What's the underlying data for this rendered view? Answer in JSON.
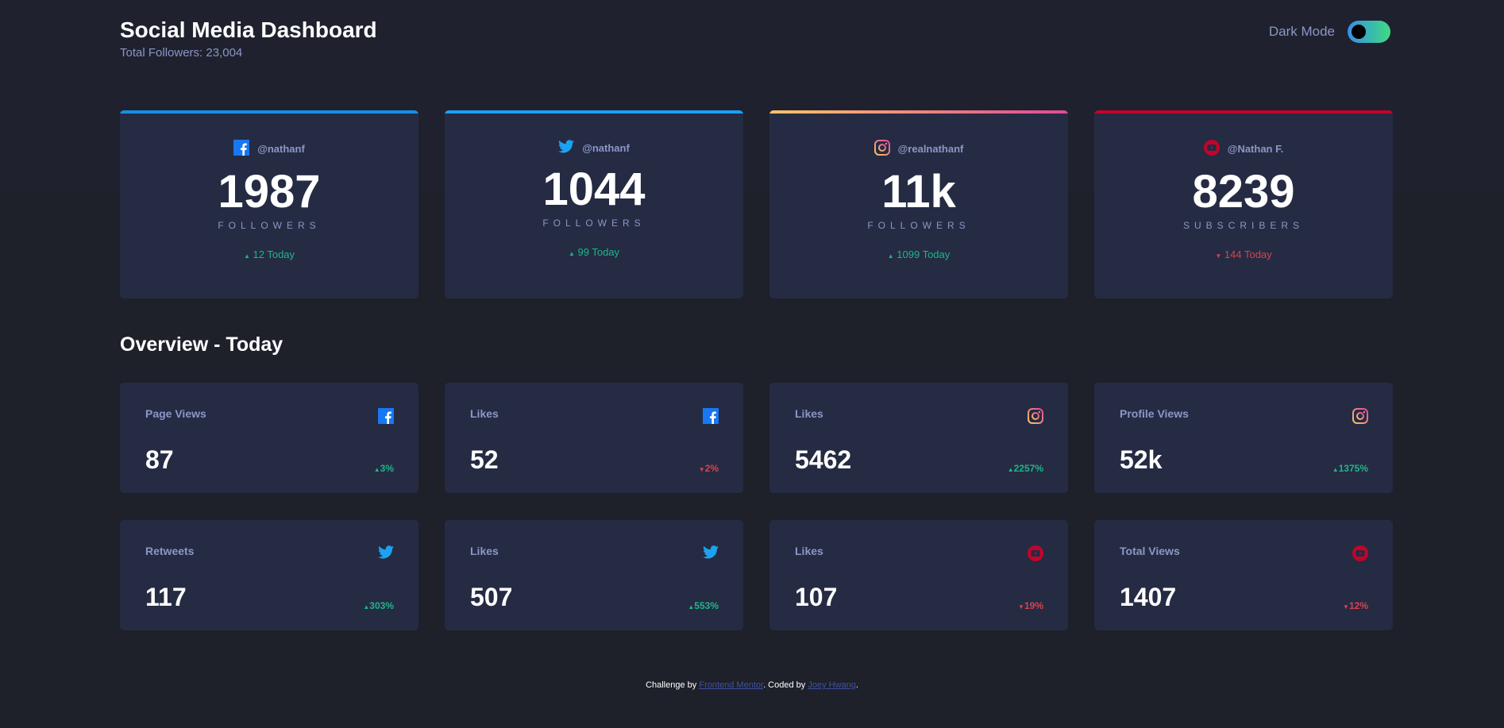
{
  "header": {
    "title": "Social Media Dashboard",
    "total_followers": "Total Followers: 23,004",
    "mode_label": "Dark Mode",
    "dark_mode_on": true
  },
  "colors": {
    "facebook": "#1877f2",
    "twitter": "#1da1f2",
    "instagram": [
      "#fdc468",
      "#df4996"
    ],
    "youtube": "#c4032a",
    "up": "#1eb589",
    "down": "#dc414c"
  },
  "followers": [
    {
      "platform": "facebook",
      "icon": "facebook-icon",
      "handle": "@nathanf",
      "count": "1987",
      "label": "FOLLOWERS",
      "change": "12 Today",
      "trend": "up"
    },
    {
      "platform": "twitter",
      "icon": "twitter-icon",
      "handle": "@nathanf",
      "count": "1044",
      "label": "FOLLOWERS",
      "change": "99 Today",
      "trend": "up"
    },
    {
      "platform": "instagram",
      "icon": "instagram-icon",
      "handle": "@realnathanf",
      "count": "11k",
      "label": "FOLLOWERS",
      "change": "1099 Today",
      "trend": "up"
    },
    {
      "platform": "youtube",
      "icon": "youtube-icon",
      "handle": "@Nathan F.",
      "count": "8239",
      "label": "SUBSCRIBERS",
      "change": "144 Today",
      "trend": "down"
    }
  ],
  "overview": {
    "title": "Overview - Today",
    "items": [
      {
        "label": "Page Views",
        "platform": "facebook",
        "value": "87",
        "change": "3%",
        "trend": "up"
      },
      {
        "label": "Likes",
        "platform": "facebook",
        "value": "52",
        "change": "2%",
        "trend": "down"
      },
      {
        "label": "Likes",
        "platform": "instagram",
        "value": "5462",
        "change": "2257%",
        "trend": "up"
      },
      {
        "label": "Profile Views",
        "platform": "instagram",
        "value": "52k",
        "change": "1375%",
        "trend": "up"
      },
      {
        "label": "Retweets",
        "platform": "twitter",
        "value": "117",
        "change": "303%",
        "trend": "up"
      },
      {
        "label": "Likes",
        "platform": "twitter",
        "value": "507",
        "change": "553%",
        "trend": "up"
      },
      {
        "label": "Likes",
        "platform": "youtube",
        "value": "107",
        "change": "19%",
        "trend": "down"
      },
      {
        "label": "Total Views",
        "platform": "youtube",
        "value": "1407",
        "change": "12%",
        "trend": "down"
      }
    ]
  },
  "footer": {
    "prefix": "Challenge by ",
    "link1": "Frontend Mentor",
    "middle": ". Coded by ",
    "link2": "Joey Hwang",
    "suffix": "."
  }
}
